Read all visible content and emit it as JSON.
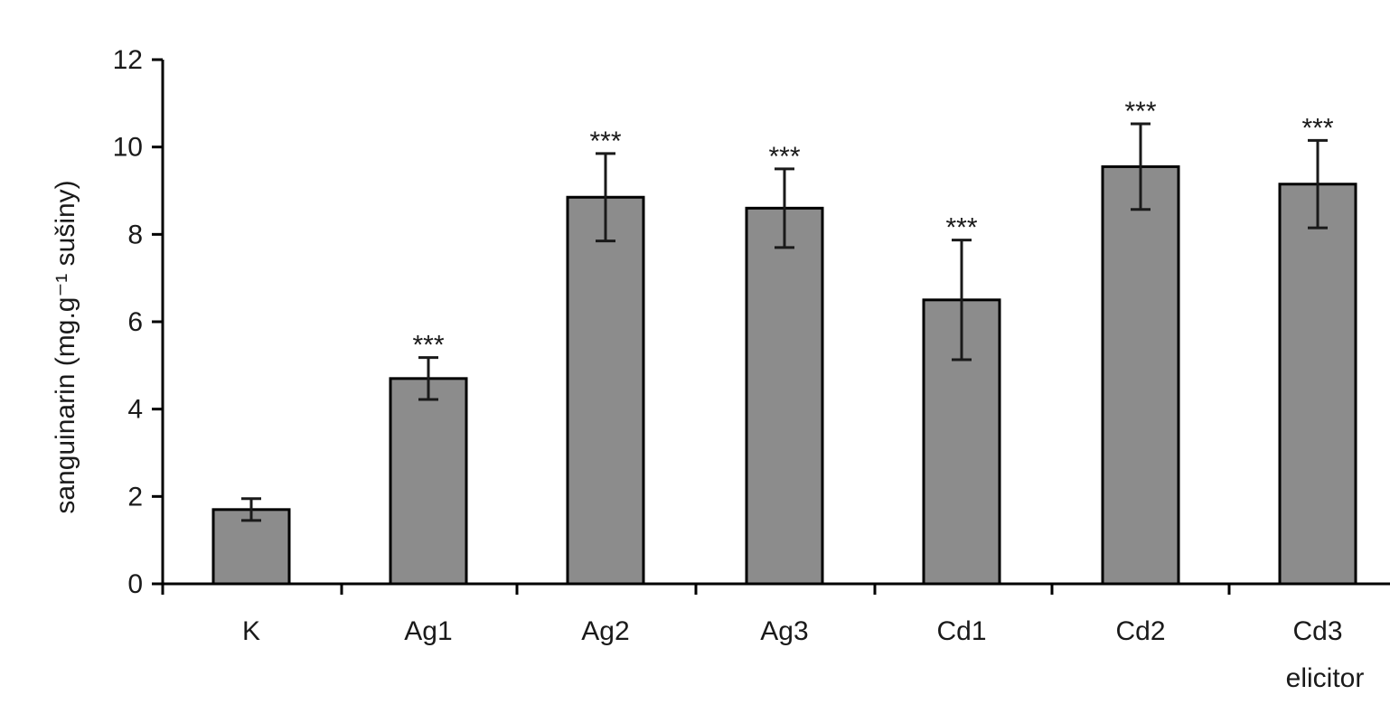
{
  "chart_data": {
    "type": "bar",
    "categories": [
      "K",
      "Ag1",
      "Ag2",
      "Ag3",
      "Cd1",
      "Cd2",
      "Cd3"
    ],
    "category_sublabels": [
      "",
      "",
      "",
      "",
      "",
      "",
      "elicitor"
    ],
    "values": [
      1.7,
      4.7,
      8.85,
      8.6,
      6.5,
      9.55,
      9.15
    ],
    "errors": [
      0.25,
      0.48,
      1.0,
      0.9,
      1.37,
      0.98,
      1.0
    ],
    "significance": [
      "",
      "***",
      "***",
      "***",
      "***",
      "***",
      "***"
    ],
    "ylabel": "sanguinarin (mg.g⁻¹ sušiny)",
    "xlabel": "",
    "ylim": [
      0,
      12
    ],
    "yticks": [
      0,
      2,
      4,
      6,
      8,
      10,
      12
    ],
    "grid": false,
    "bar_color": "#8c8c8c"
  }
}
